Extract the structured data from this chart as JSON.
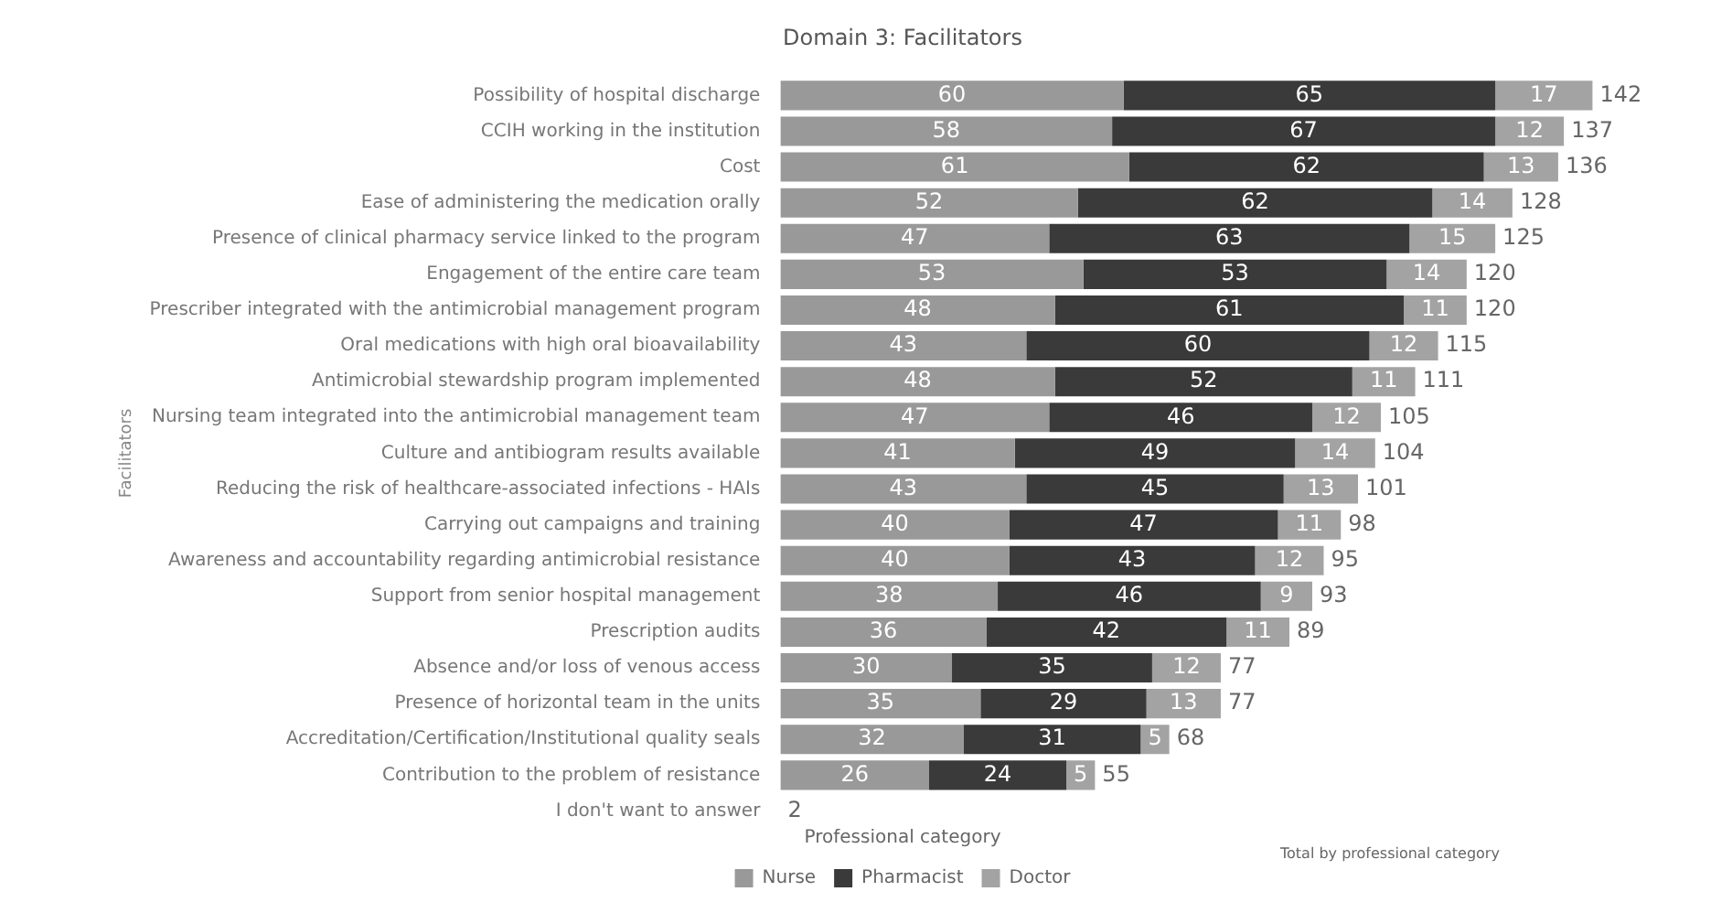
{
  "chart_data": {
    "type": "bar",
    "orientation": "horizontal",
    "stacked": true,
    "title": "Domain 3: Facilitators",
    "ylabel": "Facilitators",
    "legend_title": "Professional category",
    "legend": "bottom",
    "grid": false,
    "tick_labels": "y",
    "data_labels": true,
    "annotations": [
      "Total by professional category"
    ],
    "categories": [
      "Possibility of hospital discharge",
      "CCIH working in the institution",
      "Cost",
      "Ease of administering the medication orally",
      "Presence of clinical pharmacy service linked to the program",
      "Engagement of the entire care team",
      "Prescriber integrated with the antimicrobial management program",
      "Oral medications with high oral bioavailability",
      "Antimicrobial stewardship program implemented",
      "Nursing team integrated into the antimicrobial management team",
      "Culture and antibiogram results available",
      "Reducing the risk of healthcare-associated infections - HAIs",
      "Carrying out campaigns and training",
      "Awareness and accountability regarding antimicrobial resistance",
      "Support from senior hospital management",
      "Prescription audits",
      "Absence and/or loss of venous access",
      "Presence of horizontal team in the units",
      "Accreditation/Certification/Institutional quality seals",
      "Contribution to the problem of resistance",
      "I don't want to answer"
    ],
    "series": [
      {
        "name": "Nurse",
        "color": "#999999",
        "values": [
          60,
          58,
          61,
          52,
          47,
          53,
          48,
          43,
          48,
          47,
          41,
          43,
          40,
          40,
          38,
          36,
          30,
          35,
          32,
          26,
          null
        ]
      },
      {
        "name": "Pharmacist",
        "color": "#3a3a3a",
        "values": [
          65,
          67,
          62,
          62,
          63,
          53,
          61,
          60,
          52,
          46,
          49,
          45,
          47,
          43,
          46,
          42,
          35,
          29,
          31,
          24,
          null
        ]
      },
      {
        "name": "Doctor",
        "color": "#a3a3a3",
        "values": [
          17,
          12,
          13,
          14,
          15,
          14,
          11,
          12,
          11,
          12,
          14,
          13,
          11,
          12,
          9,
          11,
          12,
          13,
          5,
          5,
          null
        ]
      }
    ],
    "totals": [
      "142",
      "137",
      "136",
      "128",
      "125",
      "120",
      "120",
      "115",
      "111",
      "105",
      "104",
      "101",
      "98",
      "95",
      "93",
      "89",
      "77",
      "77",
      "68",
      "55",
      "2"
    ]
  }
}
